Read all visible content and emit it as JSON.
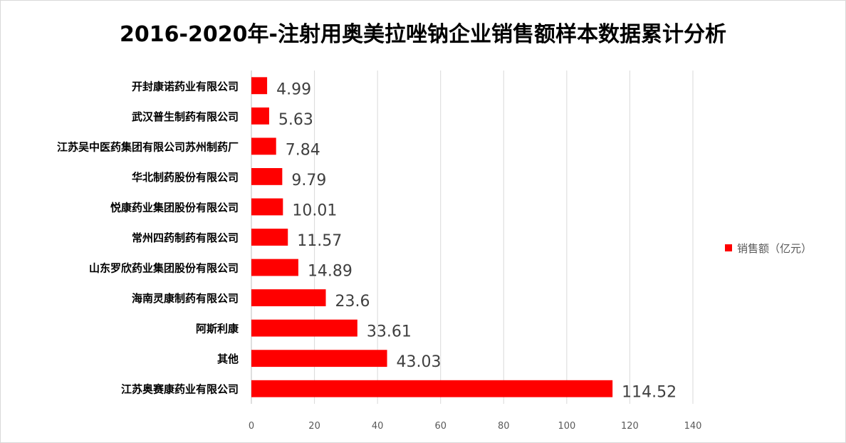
{
  "chart_data": {
    "type": "bar",
    "orientation": "horizontal",
    "title": "2016-2020年-注射用奥美拉唑钠企业销售额样本数据累计分析",
    "categories": [
      "开封康诺药业有限公司",
      "武汉普生制药有限公司",
      "江苏吴中医药集团有限公司苏州制药厂",
      "华北制药股份有限公司",
      "悦康药业集团股份有限公司",
      "常州四药制药有限公司",
      "山东罗欣药业集团股份有限公司",
      "海南灵康制药有限公司",
      "阿斯利康",
      "其他",
      "江苏奥赛康药业有限公司"
    ],
    "series": [
      {
        "name": "销售额（亿元）",
        "values": [
          4.99,
          5.63,
          7.84,
          9.79,
          10.01,
          11.57,
          14.89,
          23.6,
          33.61,
          43.03,
          114.52
        ],
        "value_labels": [
          "4.99",
          "5.63",
          "7.84",
          "9.79",
          "10.01",
          "11.57",
          "14.89",
          "23.6",
          "33.61",
          "43.03",
          "114.52"
        ]
      }
    ],
    "xlim": [
      0,
      140
    ],
    "x_ticks": [
      "0",
      "20",
      "40",
      "60",
      "80",
      "100",
      "120",
      "140"
    ],
    "grid": true,
    "legend_position": "right",
    "colors": {
      "bar": "#ff0000"
    }
  }
}
